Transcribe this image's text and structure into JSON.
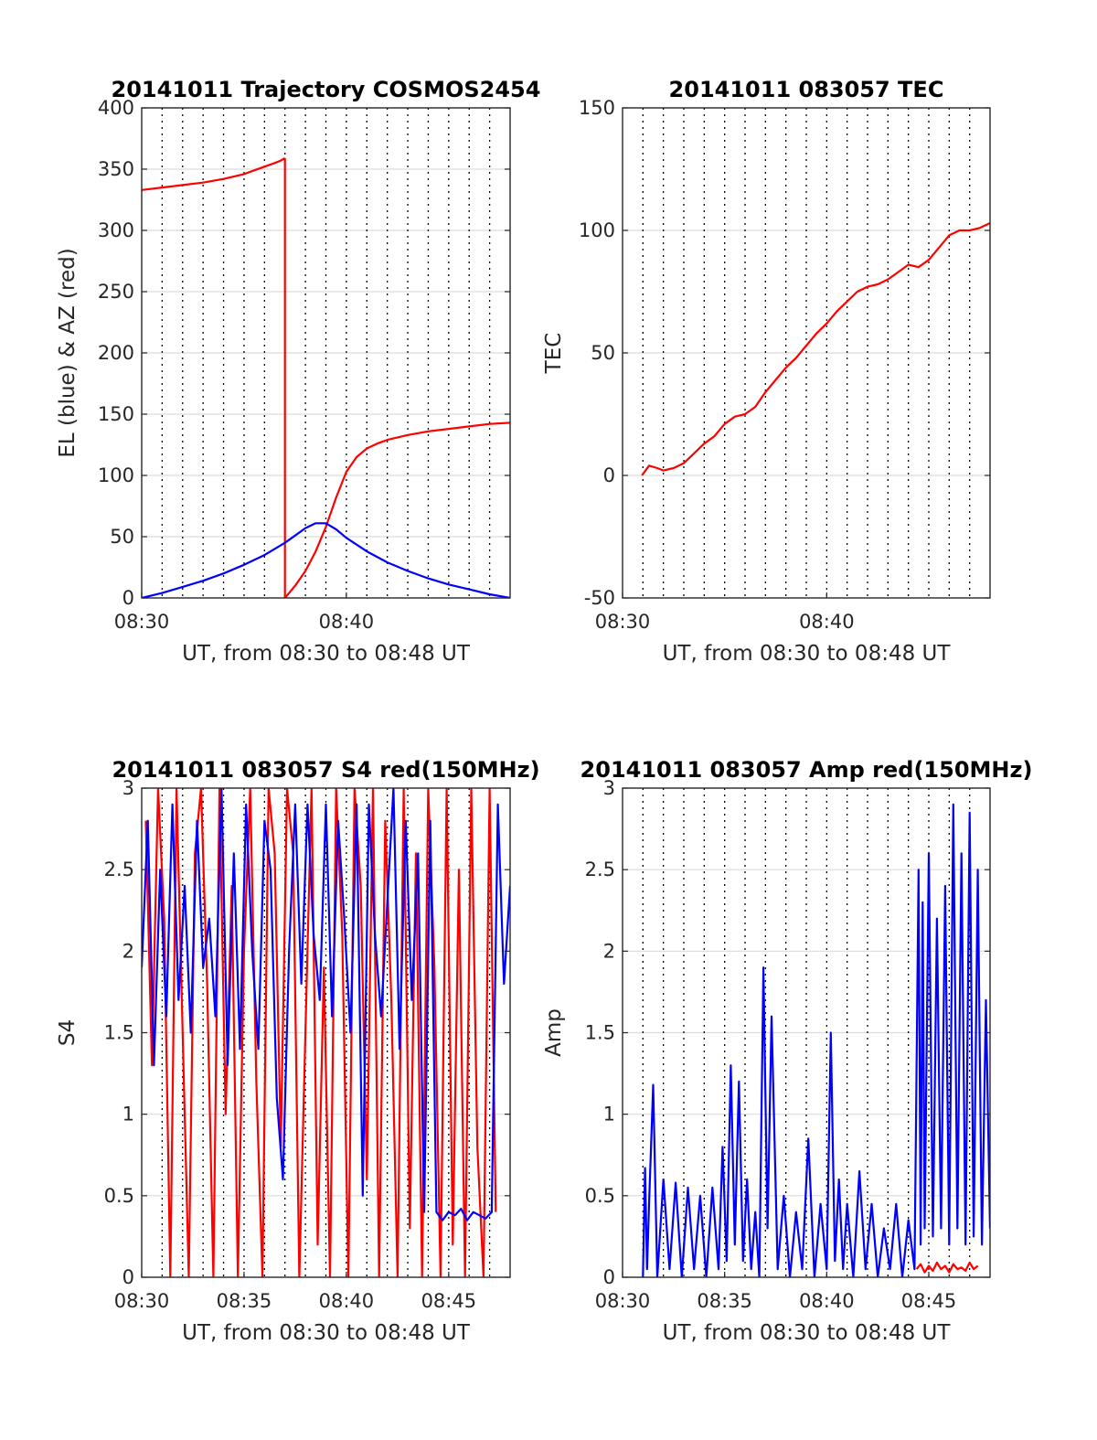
{
  "figure": {
    "background": "#ffffff"
  },
  "chart_data": [
    {
      "id": "traj",
      "type": "line",
      "title": "20141011 Trajectory COSMOS2454",
      "xlabel": "UT, from 08:30 to 08:48 UT",
      "ylabel": "EL (blue) & AZ (red)",
      "x_units": "minutes after 08:30 UT",
      "xlim": [
        0,
        18
      ],
      "ylim": [
        0,
        400
      ],
      "yticks": [
        0,
        50,
        100,
        150,
        200,
        250,
        300,
        350,
        400
      ],
      "xticks": [
        {
          "v": 0,
          "label": "08:30"
        },
        {
          "v": 10,
          "label": "08:40"
        }
      ],
      "vgrid_minutes": [
        1,
        2,
        3,
        4,
        5,
        6,
        7,
        8,
        9,
        10,
        11,
        12,
        13,
        14,
        15,
        16,
        17
      ],
      "grid": true,
      "series": [
        {
          "color": "#ff0000",
          "x": [
            0,
            1,
            2,
            3,
            4,
            5,
            5.5,
            6,
            6.5,
            6.8,
            7.0
          ],
          "y": [
            333,
            335,
            337,
            339,
            342,
            346,
            349,
            352,
            355,
            357,
            359
          ]
        },
        {
          "color": "#ff0000",
          "x": [
            7.0,
            7.0
          ],
          "y": [
            359,
            0
          ]
        },
        {
          "color": "#ff0000",
          "x": [
            7.0,
            7.5,
            8.0,
            8.5,
            9.0,
            9.5,
            10.0,
            10.5,
            11.0,
            11.5,
            12.0,
            13.0,
            14.0,
            15.0,
            16.0,
            17.0,
            18.0
          ],
          "y": [
            0,
            10,
            22,
            38,
            58,
            82,
            103,
            115,
            122,
            126,
            129,
            133,
            136,
            138,
            140,
            142,
            143
          ]
        },
        {
          "color": "#0000ff",
          "x": [
            0,
            1,
            2,
            3,
            4,
            5,
            6,
            7,
            7.5,
            8,
            8.5,
            9,
            9.5,
            10,
            11,
            12,
            13,
            14,
            15,
            16,
            17,
            18
          ],
          "y": [
            0,
            4,
            9,
            14,
            20,
            27,
            35,
            45,
            51,
            57,
            61,
            61,
            56,
            49,
            38,
            29,
            22,
            16,
            11,
            7,
            3,
            0
          ]
        }
      ]
    },
    {
      "id": "tec",
      "type": "line",
      "title": "20141011 083057 TEC",
      "xlabel": "UT, from 08:30 to 08:48 UT",
      "ylabel": "TEC",
      "x_units": "minutes after 08:30 UT",
      "xlim": [
        0,
        18
      ],
      "ylim": [
        -50,
        150
      ],
      "yticks": [
        -50,
        0,
        50,
        100,
        150
      ],
      "xticks": [
        {
          "v": 0,
          "label": "08:30"
        },
        {
          "v": 10,
          "label": "08:40"
        }
      ],
      "vgrid_minutes": [
        1,
        2,
        3,
        4,
        5,
        6,
        7,
        8,
        9,
        10,
        11,
        12,
        13,
        14,
        15,
        16,
        17
      ],
      "grid": true,
      "series": [
        {
          "color": "#ff0000",
          "x": [
            0.95,
            1.3,
            1.7,
            2.0,
            2.5,
            3.0,
            3.5,
            4.0,
            4.5,
            5.0,
            5.5,
            6.0,
            6.5,
            7.0,
            7.5,
            8.0,
            8.5,
            9.0,
            9.5,
            10.0,
            10.5,
            11.0,
            11.5,
            12.0,
            12.5,
            13.0,
            13.5,
            14.0,
            14.5,
            15.0,
            15.5,
            16.0,
            16.5,
            17.0,
            17.5,
            18.0
          ],
          "y": [
            0,
            4,
            3,
            2,
            3,
            5,
            9,
            13,
            16,
            21,
            24,
            25,
            28,
            34,
            39,
            44,
            48,
            53,
            58,
            62,
            67,
            71,
            75,
            77,
            78,
            80,
            83,
            86,
            85,
            88,
            93,
            98,
            100,
            100,
            101,
            103
          ]
        }
      ]
    },
    {
      "id": "s4",
      "type": "line",
      "title": "20141011 083057 S4 red(150MHz)",
      "xlabel": "UT, from 08:30 to 08:48 UT",
      "ylabel": "S4",
      "x_units": "minutes after 08:30 UT",
      "xlim": [
        0,
        18
      ],
      "ylim": [
        0,
        3
      ],
      "yticks": [
        0,
        0.5,
        1,
        1.5,
        2,
        2.5,
        3
      ],
      "xticks": [
        {
          "v": 0,
          "label": "08:30"
        },
        {
          "v": 5,
          "label": "08:35"
        },
        {
          "v": 10,
          "label": "08:40"
        },
        {
          "v": 15,
          "label": "08:45"
        }
      ],
      "vgrid_minutes": [
        1,
        2,
        3,
        4,
        5,
        6,
        7,
        8,
        9,
        10,
        11,
        12,
        13,
        14,
        15,
        16,
        17
      ],
      "grid": true,
      "series": [
        {
          "color": "#ff0000",
          "x": [
            0.2,
            0.5,
            0.8,
            1.1,
            1.4,
            1.7,
            2.0,
            2.3,
            2.6,
            2.9,
            3.2,
            3.5,
            3.8,
            4.1,
            4.4,
            4.7,
            5.0,
            5.3,
            5.6,
            5.9,
            6.2,
            6.5,
            6.8,
            7.1,
            7.4,
            7.7,
            8.0,
            8.3,
            8.6,
            8.9,
            9.2,
            9.5,
            9.8,
            10.1,
            10.4,
            10.7,
            11.0,
            11.3,
            11.6,
            11.9,
            12.2,
            12.5,
            12.8,
            13.1,
            13.4,
            13.7,
            14.0,
            14.3,
            14.6,
            14.9,
            15.2,
            15.5,
            15.8,
            16.1,
            16.4,
            16.7,
            17.0,
            17.3
          ],
          "y": [
            2.8,
            1.3,
            3.0,
            2.2,
            0.0,
            3.0,
            1.5,
            0.0,
            2.6,
            3.0,
            1.8,
            0.0,
            3.0,
            1.0,
            2.4,
            0.0,
            2.0,
            3.0,
            1.2,
            0.0,
            3.0,
            2.6,
            0.8,
            3.0,
            2.6,
            0.0,
            1.5,
            3.0,
            0.2,
            1.9,
            0.0,
            3.0,
            2.1,
            0.0,
            3.0,
            2.4,
            0.6,
            3.0,
            0.0,
            2.8,
            1.7,
            0.0,
            3.0,
            0.3,
            2.6,
            0.0,
            3.0,
            1.9,
            0.0,
            3.0,
            0.2,
            2.5,
            0.0,
            3.0,
            0.8,
            0.0,
            3.0,
            0.4
          ]
        },
        {
          "color": "#0000ff",
          "x": [
            0.0,
            0.3,
            0.6,
            0.9,
            1.2,
            1.5,
            1.8,
            2.1,
            2.4,
            2.7,
            3.0,
            3.3,
            3.6,
            3.9,
            4.2,
            4.5,
            4.8,
            5.1,
            5.4,
            5.7,
            6.0,
            6.3,
            6.6,
            6.9,
            7.2,
            7.5,
            7.8,
            8.1,
            8.4,
            8.7,
            9.0,
            9.3,
            9.6,
            9.9,
            10.2,
            10.5,
            10.8,
            11.1,
            11.4,
            11.7,
            12.0,
            12.3,
            12.6,
            12.9,
            13.2,
            13.5,
            13.8,
            14.1,
            14.4,
            14.7,
            15.0,
            15.3,
            15.6,
            15.9,
            16.2,
            16.5,
            16.8,
            17.1,
            17.4,
            17.7,
            18.0
          ],
          "y": [
            1.9,
            2.8,
            1.3,
            2.5,
            1.6,
            2.9,
            1.7,
            2.4,
            1.5,
            2.8,
            1.9,
            2.2,
            1.6,
            3.0,
            1.3,
            2.6,
            1.4,
            2.9,
            2.0,
            1.4,
            2.8,
            2.5,
            1.1,
            0.6,
            2.0,
            2.9,
            1.8,
            2.9,
            2.1,
            1.7,
            2.9,
            1.6,
            2.8,
            2.2,
            1.5,
            2.9,
            0.5,
            2.9,
            2.1,
            1.6,
            2.3,
            3.0,
            1.4,
            2.8,
            1.7,
            2.6,
            0.4,
            2.8,
            0.4,
            0.35,
            0.4,
            0.38,
            0.42,
            0.35,
            0.4,
            0.38,
            0.36,
            0.4,
            2.9,
            1.8,
            2.4
          ]
        }
      ]
    },
    {
      "id": "amp",
      "type": "line",
      "title": "20141011 083057 Amp red(150MHz)",
      "xlabel": "UT, from 08:30 to 08:48 UT",
      "ylabel": "Amp",
      "x_units": "minutes after 08:30 UT",
      "xlim": [
        0,
        18
      ],
      "ylim": [
        0,
        3
      ],
      "yticks": [
        0,
        0.5,
        1,
        1.5,
        2,
        2.5,
        3
      ],
      "xticks": [
        {
          "v": 0,
          "label": "08:30"
        },
        {
          "v": 5,
          "label": "08:35"
        },
        {
          "v": 10,
          "label": "08:40"
        },
        {
          "v": 15,
          "label": "08:45"
        }
      ],
      "vgrid_minutes": [
        1,
        2,
        3,
        4,
        5,
        6,
        7,
        8,
        9,
        10,
        11,
        12,
        13,
        14,
        15,
        16,
        17
      ],
      "grid": true,
      "series": [
        {
          "color": "#ff0000",
          "x": [
            14.4,
            14.6,
            14.8,
            15.0,
            15.2,
            15.4,
            15.6,
            15.8,
            16.0,
            16.2,
            16.4,
            16.6,
            16.8,
            17.0,
            17.2,
            17.4
          ],
          "y": [
            0.05,
            0.08,
            0.03,
            0.07,
            0.04,
            0.09,
            0.05,
            0.07,
            0.03,
            0.08,
            0.05,
            0.06,
            0.04,
            0.09,
            0.05,
            0.07
          ]
        },
        {
          "color": "#0000ff",
          "x": [
            1.0,
            1.1,
            1.2,
            1.3,
            1.5,
            1.7,
            2.0,
            2.3,
            2.6,
            2.9,
            3.2,
            3.5,
            3.8,
            4.1,
            4.4,
            4.7,
            4.9,
            5.1,
            5.3,
            5.5,
            5.7,
            5.9,
            6.1,
            6.3,
            6.5,
            6.7,
            6.9,
            7.1,
            7.3,
            7.6,
            7.9,
            8.2,
            8.5,
            8.8,
            9.1,
            9.4,
            9.7,
            10.0,
            10.2,
            10.4,
            10.6,
            10.8,
            11.0,
            11.3,
            11.6,
            11.9,
            12.2,
            12.5,
            12.8,
            13.1,
            13.4,
            13.7,
            14.0,
            14.3,
            14.5,
            14.6,
            14.7,
            14.8,
            15.0,
            15.2,
            15.4,
            15.6,
            15.8,
            16.0,
            16.2,
            16.4,
            16.6,
            16.8,
            17.0,
            17.2,
            17.4,
            17.6,
            17.8,
            18.0
          ],
          "y": [
            0.0,
            0.67,
            0.05,
            0.45,
            1.18,
            0.0,
            0.6,
            0.05,
            0.58,
            0.0,
            0.55,
            0.05,
            0.5,
            0.0,
            0.55,
            0.05,
            0.8,
            0.1,
            1.3,
            0.2,
            1.2,
            0.1,
            0.6,
            0.05,
            0.4,
            0.0,
            1.9,
            0.3,
            1.6,
            0.05,
            0.5,
            0.0,
            0.4,
            0.05,
            0.85,
            0.0,
            0.45,
            0.05,
            1.5,
            0.1,
            0.6,
            0.05,
            0.45,
            0.0,
            0.65,
            0.05,
            0.45,
            0.0,
            0.3,
            0.05,
            0.45,
            0.0,
            0.35,
            0.05,
            2.5,
            0.2,
            2.3,
            0.3,
            2.6,
            0.25,
            2.2,
            0.3,
            2.4,
            0.2,
            2.9,
            0.3,
            2.6,
            0.2,
            2.85,
            0.25,
            2.5,
            0.2,
            1.7,
            0.3
          ]
        }
      ]
    }
  ]
}
